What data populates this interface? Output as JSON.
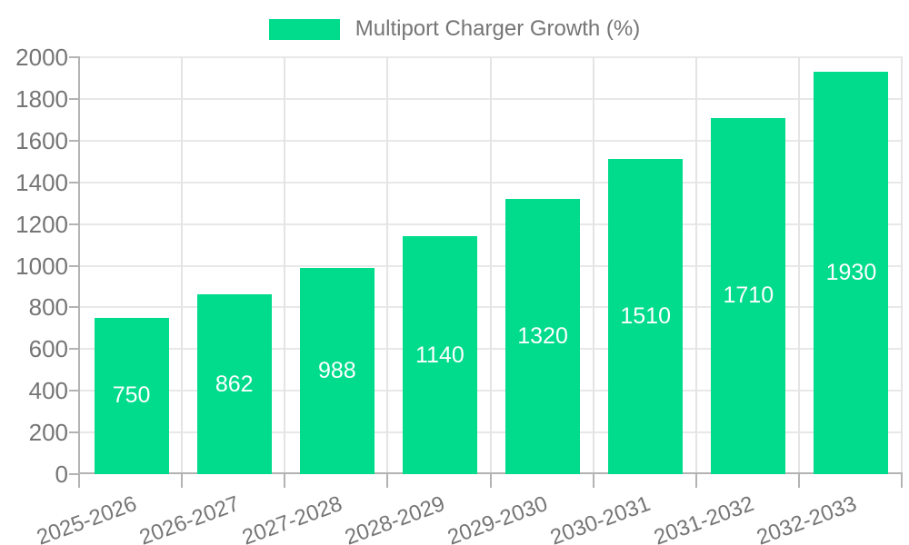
{
  "legend": {
    "label": "Multiport Charger Growth (%)",
    "position": "top"
  },
  "chart_data": {
    "type": "bar",
    "title": "Multiport Charger Growth (%)",
    "categories": [
      "2025-2026",
      "2026-2027",
      "2027-2028",
      "2028-2029",
      "2029-2030",
      "2030-2031",
      "2031-2032",
      "2032-2033"
    ],
    "values": [
      750,
      862,
      988,
      1140,
      1320,
      1510,
      1710,
      1930
    ],
    "value_labels": [
      "750",
      "862",
      "988",
      "1140",
      "1320",
      "1510",
      "1710",
      "1930"
    ],
    "xlabel": "",
    "ylabel": "",
    "ylim": [
      0,
      2000
    ],
    "yticks": [
      0,
      200,
      400,
      600,
      800,
      1000,
      1200,
      1400,
      1600,
      1800,
      2000
    ],
    "grid": true,
    "legend_position": "top",
    "bar_color": "#00db8c",
    "value_label_color": "#ffffff",
    "axis_text_color": "#757575",
    "gridline_color": "#e6e6e6",
    "axis_line_color": "#b3b3b3"
  }
}
